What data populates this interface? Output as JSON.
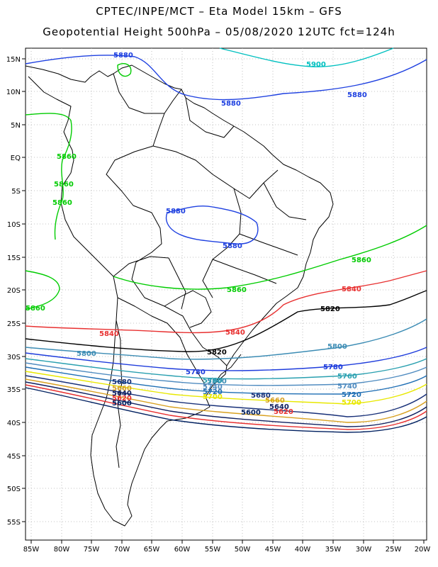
{
  "header": {
    "line1": "CPTEC/INPE/MCT –  Eta Model 15km – GFS",
    "line2": "Geopotential Height 500hPa – 05/08/2020 12UTC fct=124h"
  },
  "axes": {
    "lon_labels": [
      "85W",
      "80W",
      "75W",
      "70W",
      "65W",
      "60W",
      "55W",
      "50W",
      "45W",
      "40W",
      "35W",
      "30W",
      "25W",
      "20W"
    ],
    "lat_labels": [
      "15N",
      "10N",
      "5N",
      "EQ",
      "5S",
      "10S",
      "15S",
      "20S",
      "25S",
      "30S",
      "35S",
      "40S",
      "45S",
      "50S",
      "55S"
    ]
  },
  "colors": {
    "c5900": "#00c0c0",
    "c5880": "#1e40e0",
    "c5860": "#00cc00",
    "c5840": "#e83030",
    "c5820": "#000000",
    "c5800": "#3c8cb4",
    "c5780": "#1e3cdc",
    "c5760": "#2aa0b0",
    "c5740": "#508cc0",
    "c5720": "#1e6eb4",
    "c5700": "#e8e800",
    "c5680": "#183078",
    "c5660": "#d8a020",
    "c5640": "#102060",
    "c5620": "#e83030",
    "c5600": "#002060",
    "coast": "#000000",
    "grid": "#b0b0b0"
  },
  "contour_labels": [
    {
      "value": "5900",
      "color": "#00c0c0"
    },
    {
      "value": "5880",
      "color": "#1e40e0"
    },
    {
      "value": "5880",
      "color": "#1e40e0"
    },
    {
      "value": "5880",
      "color": "#1e40e0"
    },
    {
      "value": "5880",
      "color": "#1e40e0"
    },
    {
      "value": "5880",
      "color": "#1e40e0"
    },
    {
      "value": "5860",
      "color": "#00cc00"
    },
    {
      "value": "5860",
      "color": "#00cc00"
    },
    {
      "value": "5860",
      "color": "#00cc00"
    },
    {
      "value": "5860",
      "color": "#00cc00"
    },
    {
      "value": "5860",
      "color": "#00cc00"
    },
    {
      "value": "5860",
      "color": "#00cc00"
    },
    {
      "value": "5840",
      "color": "#e83030"
    },
    {
      "value": "5840",
      "color": "#e83030"
    },
    {
      "value": "5840",
      "color": "#e83030"
    },
    {
      "value": "5820",
      "color": "#000000"
    },
    {
      "value": "5820",
      "color": "#000000"
    },
    {
      "value": "5800",
      "color": "#3c8cb4"
    },
    {
      "value": "5800",
      "color": "#3c8cb4"
    },
    {
      "value": "5800",
      "color": "#3c8cb4"
    },
    {
      "value": "5780",
      "color": "#1e3cdc"
    },
    {
      "value": "5780",
      "color": "#1e3cdc"
    },
    {
      "value": "5760",
      "color": "#2aa0b0"
    },
    {
      "value": "5760",
      "color": "#2aa0b0"
    },
    {
      "value": "5740",
      "color": "#508cc0"
    },
    {
      "value": "5740",
      "color": "#508cc0"
    },
    {
      "value": "5720",
      "color": "#1e6eb4"
    },
    {
      "value": "5720",
      "color": "#1e6eb4"
    },
    {
      "value": "5700",
      "color": "#e8e800"
    },
    {
      "value": "5700",
      "color": "#e8e800"
    },
    {
      "value": "5680",
      "color": "#183078"
    },
    {
      "value": "5680",
      "color": "#183078"
    },
    {
      "value": "5660",
      "color": "#d8a020"
    },
    {
      "value": "5660",
      "color": "#d8a020"
    },
    {
      "value": "5640",
      "color": "#102060"
    },
    {
      "value": "5640",
      "color": "#102060"
    },
    {
      "value": "5620",
      "color": "#e83030"
    },
    {
      "value": "5620",
      "color": "#e83030"
    },
    {
      "value": "5600",
      "color": "#002060"
    },
    {
      "value": "5600",
      "color": "#002060"
    }
  ]
}
